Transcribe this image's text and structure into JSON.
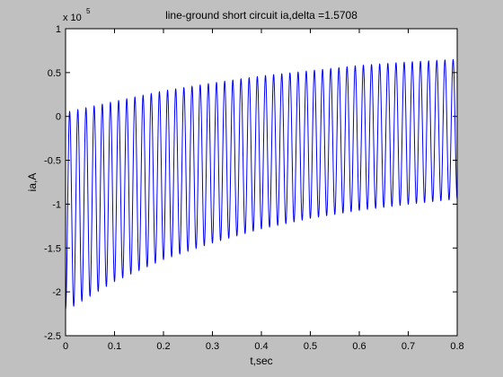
{
  "chart_data": {
    "type": "line",
    "title": "line-ground short circuit ia,delta =1.5708",
    "xlabel": "t,sec",
    "ylabel": "ia,A",
    "y_exponent_base": "x 10",
    "y_exponent_power": "5",
    "xlim": [
      0,
      0.8
    ],
    "ylim": [
      -2.5,
      1
    ],
    "y_scale_factor": 100000,
    "x_ticks": [
      0,
      0.1,
      0.2,
      0.3,
      0.4,
      0.5,
      0.6,
      0.7,
      0.8
    ],
    "x_tick_labels": [
      "0",
      "0.1",
      "0.2",
      "0.3",
      "0.4",
      "0.5",
      "0.6",
      "0.7",
      "0.8"
    ],
    "y_ticks": [
      -2.5,
      -2,
      -1.5,
      -1,
      -0.5,
      0,
      0.5,
      1
    ],
    "y_tick_labels": [
      "-2.5",
      "-2",
      "-1.5",
      "-1",
      "-0.5",
      "0",
      "0.5",
      "1"
    ],
    "grid": false,
    "series": [
      {
        "color": "#0000ff",
        "sample_t": [
          0.005,
          0.1,
          0.2,
          0.3,
          0.4,
          0.5,
          0.6,
          0.7,
          0.8
        ],
        "upper_envelope": [
          0.05,
          0.17,
          0.29,
          0.38,
          0.46,
          0.52,
          0.58,
          0.62,
          0.65
        ],
        "lower_envelope": [
          -2.2,
          -1.88,
          -1.63,
          -1.44,
          -1.28,
          -1.16,
          -1.07,
          -1.0,
          -0.94
        ],
        "frequency_hz": 60,
        "start": {
          "t": 0,
          "value": -0.65
        }
      }
    ]
  }
}
